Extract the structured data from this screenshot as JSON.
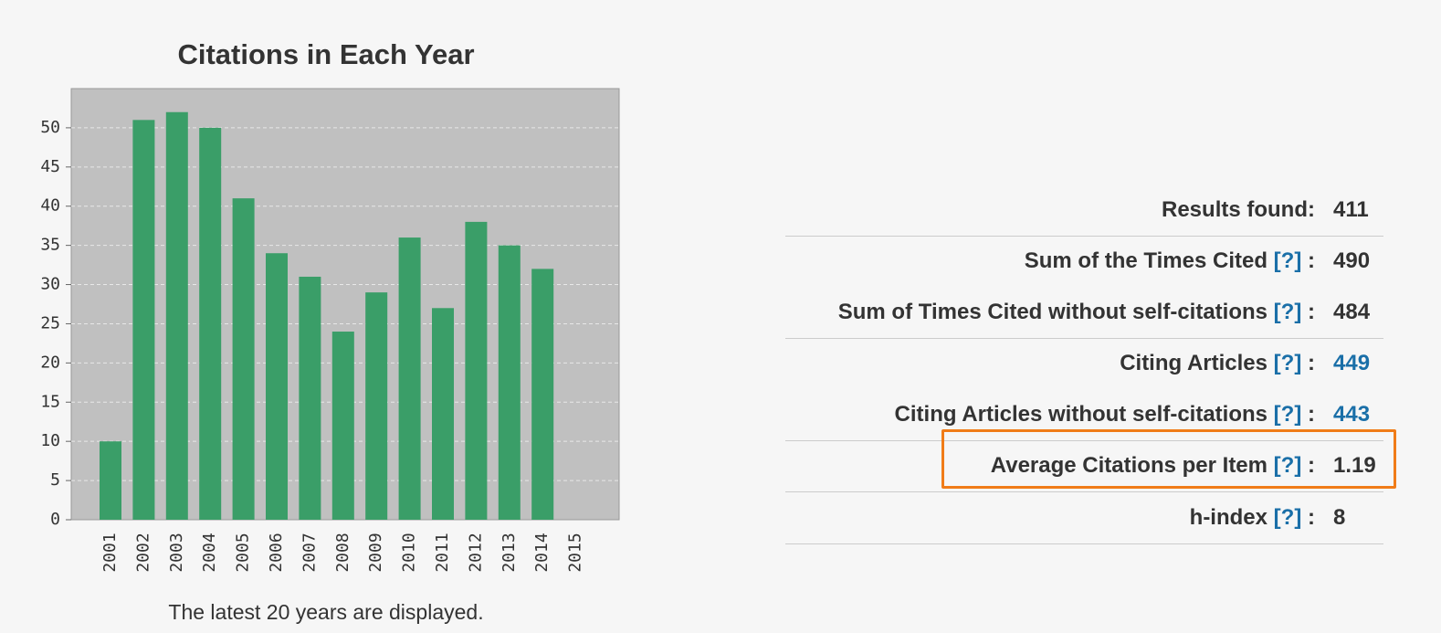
{
  "chart_data": {
    "type": "bar",
    "title": "Citations in Each Year",
    "categories": [
      "2001",
      "2002",
      "2003",
      "2004",
      "2005",
      "2006",
      "2007",
      "2008",
      "2009",
      "2010",
      "2011",
      "2012",
      "2013",
      "2014",
      "2015"
    ],
    "values": [
      10,
      51,
      52,
      50,
      41,
      34,
      31,
      24,
      29,
      36,
      27,
      38,
      35,
      32,
      0
    ],
    "color": "#3a9e68",
    "ylim": [
      0,
      55
    ],
    "yticks": [
      0,
      5,
      10,
      15,
      20,
      25,
      30,
      35,
      40,
      45,
      50
    ],
    "grid": true,
    "note": "The latest 20 years are displayed."
  },
  "stats": {
    "colon": ":",
    "rows": [
      {
        "label": "Results found:",
        "value": "411"
      },
      {
        "label": "Sum of the Times Cited",
        "help": "[?]",
        "value": "490"
      },
      {
        "label": "Sum of Times Cited without self-citations",
        "help": "[?]",
        "value": "484"
      },
      {
        "label": "Citing Articles",
        "help": "[?]",
        "value": "449"
      },
      {
        "label": "Citing Articles without self-citations",
        "help": "[?]",
        "value": "443"
      },
      {
        "label": "Average Citations per Item",
        "help": "[?]",
        "value": "1.19"
      },
      {
        "label": "h-index",
        "help": "[?]",
        "value": "8"
      }
    ]
  }
}
